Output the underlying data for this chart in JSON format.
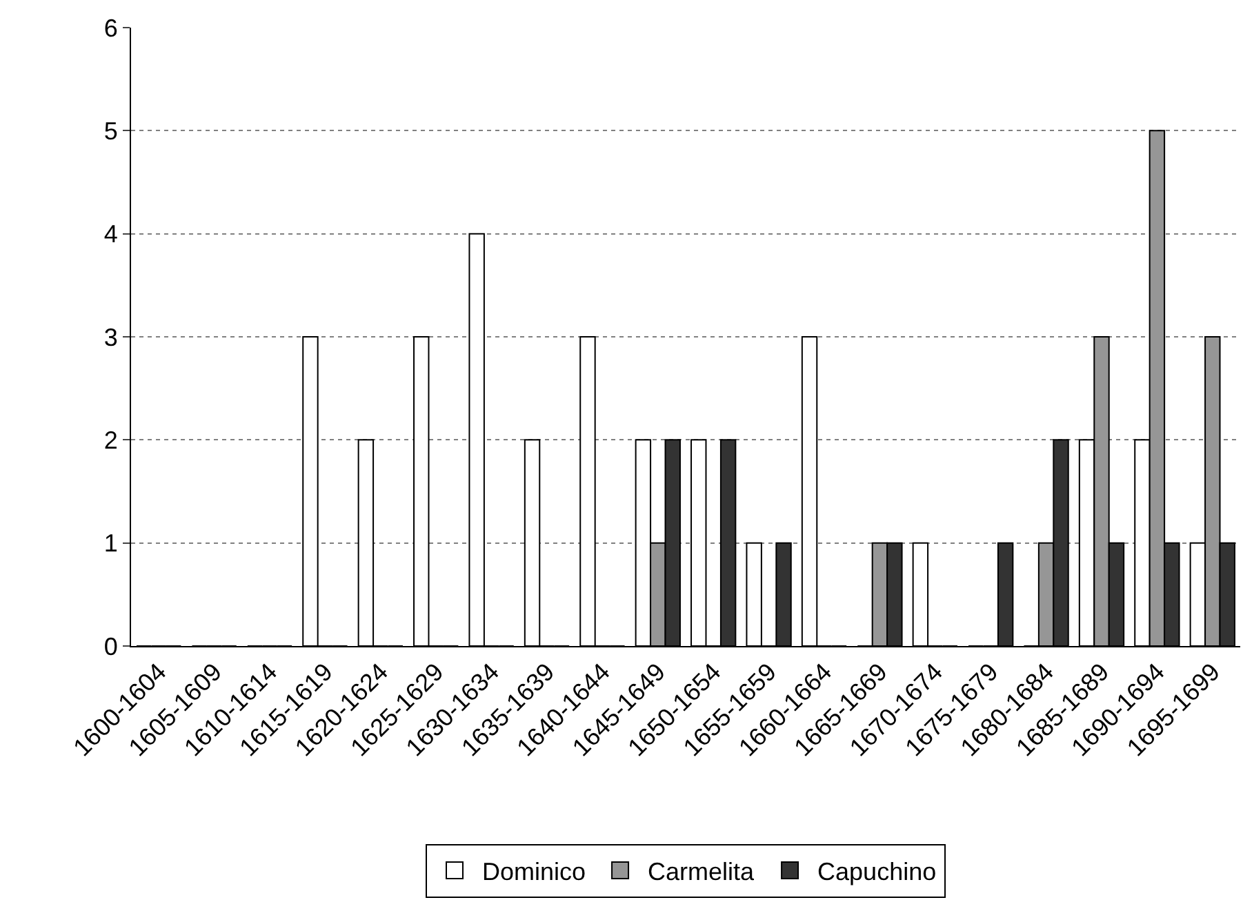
{
  "chart_data": {
    "type": "bar",
    "categories": [
      "1600-1604",
      "1605-1609",
      "1610-1614",
      "1615-1619",
      "1620-1624",
      "1625-1629",
      "1630-1634",
      "1635-1639",
      "1640-1644",
      "1645-1649",
      "1650-1654",
      "1655-1659",
      "1660-1664",
      "1665-1669",
      "1670-1674",
      "1675-1679",
      "1680-1684",
      "1685-1689",
      "1690-1694",
      "1695-1699"
    ],
    "series": [
      {
        "name": "Dominico",
        "color": "#ffffff",
        "values": [
          0,
          0,
          0,
          3,
          2,
          3,
          4,
          2,
          3,
          2,
          2,
          1,
          3,
          0,
          1,
          0,
          0,
          2,
          2,
          1
        ]
      },
      {
        "name": "Carmelita",
        "color": "#969696",
        "values": [
          0,
          0,
          0,
          0,
          0,
          0,
          0,
          0,
          0,
          1,
          0,
          0,
          0,
          1,
          0,
          0,
          1,
          3,
          5,
          3
        ]
      },
      {
        "name": "Capuchino",
        "color": "#333333",
        "values": [
          0,
          0,
          0,
          0,
          0,
          0,
          0,
          0,
          0,
          2,
          2,
          1,
          0,
          1,
          0,
          1,
          2,
          1,
          1,
          1
        ]
      }
    ],
    "ylim": [
      0,
      6
    ],
    "yticks": [
      0,
      1,
      2,
      3,
      4,
      5,
      6
    ],
    "grid": "y",
    "legend": "bottom"
  }
}
